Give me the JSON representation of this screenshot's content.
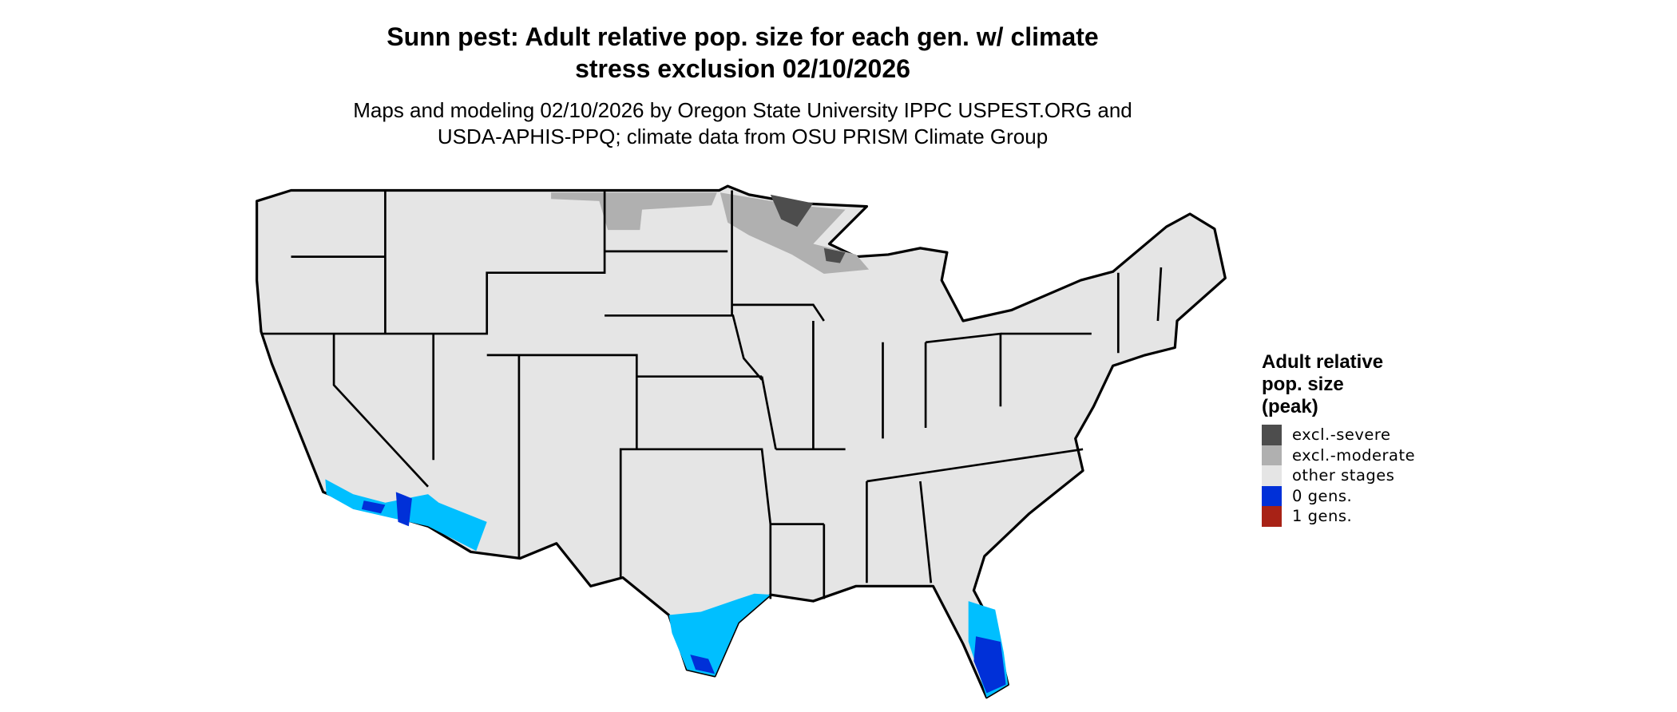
{
  "title_lines": [
    "Sunn pest: Adult relative pop. size for each gen. w/ climate",
    "stress exclusion 02/10/2026"
  ],
  "subtitle_lines": [
    "Maps and modeling 02/10/2026 by Oregon State University IPPC USPEST.ORG and",
    "USDA-APHIS-PPQ; climate data from OSU PRISM Climate Group"
  ],
  "legend": {
    "title_lines": [
      "Adult relative",
      "pop. size",
      "(peak)"
    ],
    "items": [
      {
        "label": "excl.-severe",
        "color": "#4d4d4d"
      },
      {
        "label": "excl.-moderate",
        "color": "#b0b0b0"
      },
      {
        "label": "other stages",
        "color": "#e5e5e5"
      },
      {
        "label": "0 gens.",
        "color": "#0030d8"
      },
      {
        "label": "1 gens.",
        "color": "#a82216"
      }
    ]
  },
  "map": {
    "region": "Contiguous United States",
    "base_color": "#e5e5e5",
    "border_color": "#000000",
    "low_fill_color": "#00bfff",
    "highlighted_areas": [
      "southern California",
      "southern Arizona",
      "south Texas coast",
      "southern Florida",
      "northern Minnesota",
      "northern Wisconsin",
      "North Dakota border"
    ]
  }
}
